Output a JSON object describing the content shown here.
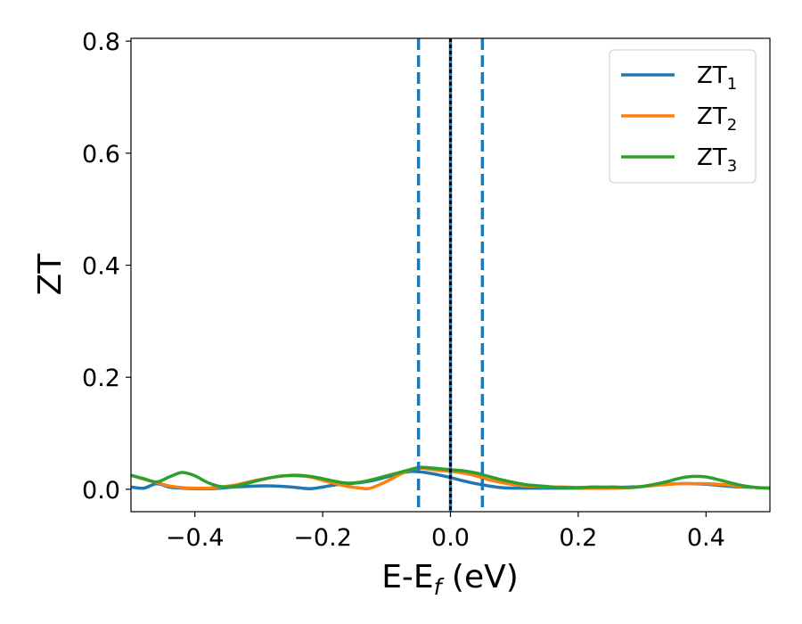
{
  "chart_data": {
    "type": "line",
    "title": "",
    "xlabel": {
      "main": "E-E",
      "sub": "f",
      "suffix": " (eV)"
    },
    "ylabel": "ZT",
    "xlim": [
      -0.5,
      0.5
    ],
    "ylim": [
      -0.04,
      0.805
    ],
    "x_ticks": [
      -0.4,
      -0.2,
      0.0,
      0.2,
      0.4
    ],
    "x_tick_labels": [
      "−0.4",
      "−0.2",
      "0.0",
      "0.2",
      "0.4"
    ],
    "y_ticks": [
      0.0,
      0.2,
      0.4,
      0.6,
      0.8
    ],
    "y_tick_labels": [
      "0.0",
      "0.2",
      "0.4",
      "0.6",
      "0.8"
    ],
    "grid": false,
    "legend_position": "top-right",
    "vertical_lines": [
      {
        "x": -0.05,
        "style": "dashed",
        "color": "#1f77b4"
      },
      {
        "x": 0.05,
        "style": "dashed",
        "color": "#1f77b4"
      },
      {
        "x": 0.0,
        "style": "solid",
        "color": "#1f77b4"
      },
      {
        "x": 0.0,
        "style": "dotted",
        "color": "#000000"
      }
    ],
    "series": [
      {
        "name": "ZT",
        "sub": "1",
        "color": "#1f77b4",
        "points": [
          [
            -0.5,
            0.004
          ],
          [
            -0.48,
            0.002
          ],
          [
            -0.46,
            0.01
          ],
          [
            -0.44,
            0.004
          ],
          [
            -0.42,
            0.002
          ],
          [
            -0.4,
            0.001
          ],
          [
            -0.38,
            0.001
          ],
          [
            -0.36,
            0.002
          ],
          [
            -0.34,
            0.004
          ],
          [
            -0.32,
            0.005
          ],
          [
            -0.3,
            0.006
          ],
          [
            -0.28,
            0.006
          ],
          [
            -0.26,
            0.005
          ],
          [
            -0.24,
            0.003
          ],
          [
            -0.22,
            0.001
          ],
          [
            -0.2,
            0.004
          ],
          [
            -0.18,
            0.008
          ],
          [
            -0.16,
            0.01
          ],
          [
            -0.14,
            0.012
          ],
          [
            -0.12,
            0.016
          ],
          [
            -0.1,
            0.022
          ],
          [
            -0.08,
            0.028
          ],
          [
            -0.06,
            0.032
          ],
          [
            -0.04,
            0.03
          ],
          [
            -0.02,
            0.026
          ],
          [
            0.0,
            0.021
          ],
          [
            0.02,
            0.015
          ],
          [
            0.04,
            0.01
          ],
          [
            0.06,
            0.006
          ],
          [
            0.08,
            0.003
          ],
          [
            0.1,
            0.002
          ],
          [
            0.12,
            0.002
          ],
          [
            0.14,
            0.002
          ],
          [
            0.16,
            0.002
          ],
          [
            0.18,
            0.002
          ],
          [
            0.2,
            0.002
          ],
          [
            0.22,
            0.002
          ],
          [
            0.24,
            0.002
          ],
          [
            0.26,
            0.003
          ],
          [
            0.28,
            0.004
          ],
          [
            0.3,
            0.005
          ],
          [
            0.32,
            0.007
          ],
          [
            0.34,
            0.009
          ],
          [
            0.36,
            0.01
          ],
          [
            0.38,
            0.01
          ],
          [
            0.4,
            0.009
          ],
          [
            0.42,
            0.007
          ],
          [
            0.44,
            0.005
          ],
          [
            0.46,
            0.004
          ],
          [
            0.48,
            0.003
          ],
          [
            0.5,
            0.002
          ]
        ]
      },
      {
        "name": "ZT",
        "sub": "2",
        "color": "#ff7f0e",
        "points": [
          [
            -0.5,
            0.025
          ],
          [
            -0.48,
            0.018
          ],
          [
            -0.46,
            0.012
          ],
          [
            -0.44,
            0.006
          ],
          [
            -0.42,
            0.003
          ],
          [
            -0.4,
            0.002
          ],
          [
            -0.38,
            0.002
          ],
          [
            -0.36,
            0.004
          ],
          [
            -0.34,
            0.007
          ],
          [
            -0.32,
            0.012
          ],
          [
            -0.3,
            0.017
          ],
          [
            -0.28,
            0.021
          ],
          [
            -0.26,
            0.024
          ],
          [
            -0.24,
            0.024
          ],
          [
            -0.22,
            0.022
          ],
          [
            -0.2,
            0.016
          ],
          [
            -0.18,
            0.01
          ],
          [
            -0.16,
            0.005
          ],
          [
            -0.14,
            0.002
          ],
          [
            -0.13,
            0.001
          ],
          [
            -0.12,
            0.004
          ],
          [
            -0.1,
            0.014
          ],
          [
            -0.08,
            0.026
          ],
          [
            -0.06,
            0.036
          ],
          [
            -0.05,
            0.038
          ],
          [
            -0.04,
            0.037
          ],
          [
            -0.02,
            0.034
          ],
          [
            0.0,
            0.032
          ],
          [
            0.02,
            0.029
          ],
          [
            0.04,
            0.024
          ],
          [
            0.06,
            0.017
          ],
          [
            0.08,
            0.012
          ],
          [
            0.1,
            0.008
          ],
          [
            0.12,
            0.006
          ],
          [
            0.14,
            0.005
          ],
          [
            0.16,
            0.004
          ],
          [
            0.18,
            0.004
          ],
          [
            0.2,
            0.003
          ],
          [
            0.22,
            0.002
          ],
          [
            0.24,
            0.002
          ],
          [
            0.26,
            0.002
          ],
          [
            0.28,
            0.003
          ],
          [
            0.3,
            0.005
          ],
          [
            0.32,
            0.007
          ],
          [
            0.34,
            0.009
          ],
          [
            0.36,
            0.01
          ],
          [
            0.38,
            0.01
          ],
          [
            0.4,
            0.01
          ],
          [
            0.42,
            0.009
          ],
          [
            0.44,
            0.007
          ],
          [
            0.46,
            0.005
          ],
          [
            0.48,
            0.003
          ],
          [
            0.5,
            0.002
          ]
        ]
      },
      {
        "name": "ZT",
        "sub": "3",
        "color": "#2ca02c",
        "points": [
          [
            -0.5,
            0.025
          ],
          [
            -0.48,
            0.019
          ],
          [
            -0.46,
            0.013
          ],
          [
            -0.44,
            0.022
          ],
          [
            -0.42,
            0.03
          ],
          [
            -0.4,
            0.024
          ],
          [
            -0.38,
            0.012
          ],
          [
            -0.36,
            0.005
          ],
          [
            -0.34,
            0.005
          ],
          [
            -0.32,
            0.01
          ],
          [
            -0.3,
            0.016
          ],
          [
            -0.28,
            0.021
          ],
          [
            -0.26,
            0.024
          ],
          [
            -0.24,
            0.025
          ],
          [
            -0.22,
            0.023
          ],
          [
            -0.2,
            0.019
          ],
          [
            -0.18,
            0.014
          ],
          [
            -0.16,
            0.011
          ],
          [
            -0.14,
            0.013
          ],
          [
            -0.12,
            0.018
          ],
          [
            -0.1,
            0.024
          ],
          [
            -0.08,
            0.03
          ],
          [
            -0.06,
            0.036
          ],
          [
            -0.05,
            0.039
          ],
          [
            -0.04,
            0.039
          ],
          [
            -0.02,
            0.037
          ],
          [
            0.0,
            0.035
          ],
          [
            0.02,
            0.033
          ],
          [
            0.04,
            0.029
          ],
          [
            0.06,
            0.023
          ],
          [
            0.08,
            0.017
          ],
          [
            0.1,
            0.012
          ],
          [
            0.12,
            0.008
          ],
          [
            0.14,
            0.006
          ],
          [
            0.16,
            0.004
          ],
          [
            0.18,
            0.003
          ],
          [
            0.2,
            0.003
          ],
          [
            0.22,
            0.004
          ],
          [
            0.24,
            0.004
          ],
          [
            0.26,
            0.004
          ],
          [
            0.28,
            0.003
          ],
          [
            0.3,
            0.005
          ],
          [
            0.32,
            0.009
          ],
          [
            0.34,
            0.014
          ],
          [
            0.36,
            0.02
          ],
          [
            0.38,
            0.023
          ],
          [
            0.4,
            0.022
          ],
          [
            0.42,
            0.017
          ],
          [
            0.44,
            0.011
          ],
          [
            0.46,
            0.006
          ],
          [
            0.48,
            0.003
          ],
          [
            0.5,
            0.002
          ]
        ]
      }
    ]
  }
}
